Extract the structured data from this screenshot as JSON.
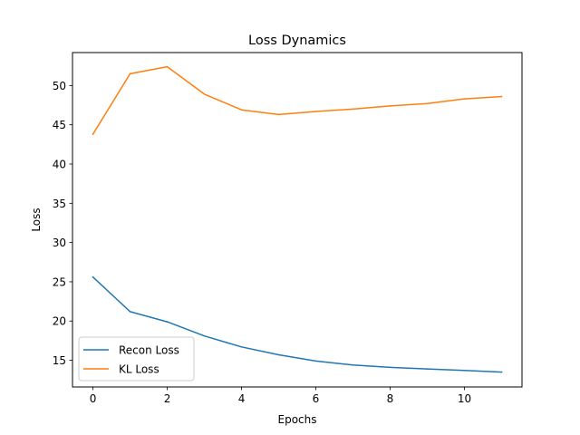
{
  "chart_data": {
    "type": "line",
    "title": "Loss Dynamics",
    "xlabel": "Epochs",
    "ylabel": "Loss",
    "xlim": [
      -0.55,
      11.55
    ],
    "ylim": [
      11.6,
      54.2
    ],
    "xticks": [
      0,
      2,
      4,
      6,
      8,
      10
    ],
    "yticks": [
      15,
      20,
      25,
      30,
      35,
      40,
      45,
      50
    ],
    "grid": false,
    "legend_position": "lower-left",
    "x": [
      0,
      1,
      2,
      3,
      4,
      5,
      6,
      7,
      8,
      9,
      10,
      11
    ],
    "series": [
      {
        "name": "Recon Loss",
        "color": "#1f77b4",
        "values": [
          25.6,
          21.2,
          19.9,
          18.1,
          16.7,
          15.7,
          14.9,
          14.4,
          14.1,
          13.9,
          13.7,
          13.5
        ]
      },
      {
        "name": "KL Loss",
        "color": "#ff7f0e",
        "values": [
          43.8,
          51.5,
          52.4,
          48.9,
          46.9,
          46.3,
          46.7,
          47.0,
          47.4,
          47.7,
          48.3,
          48.6
        ]
      }
    ]
  }
}
